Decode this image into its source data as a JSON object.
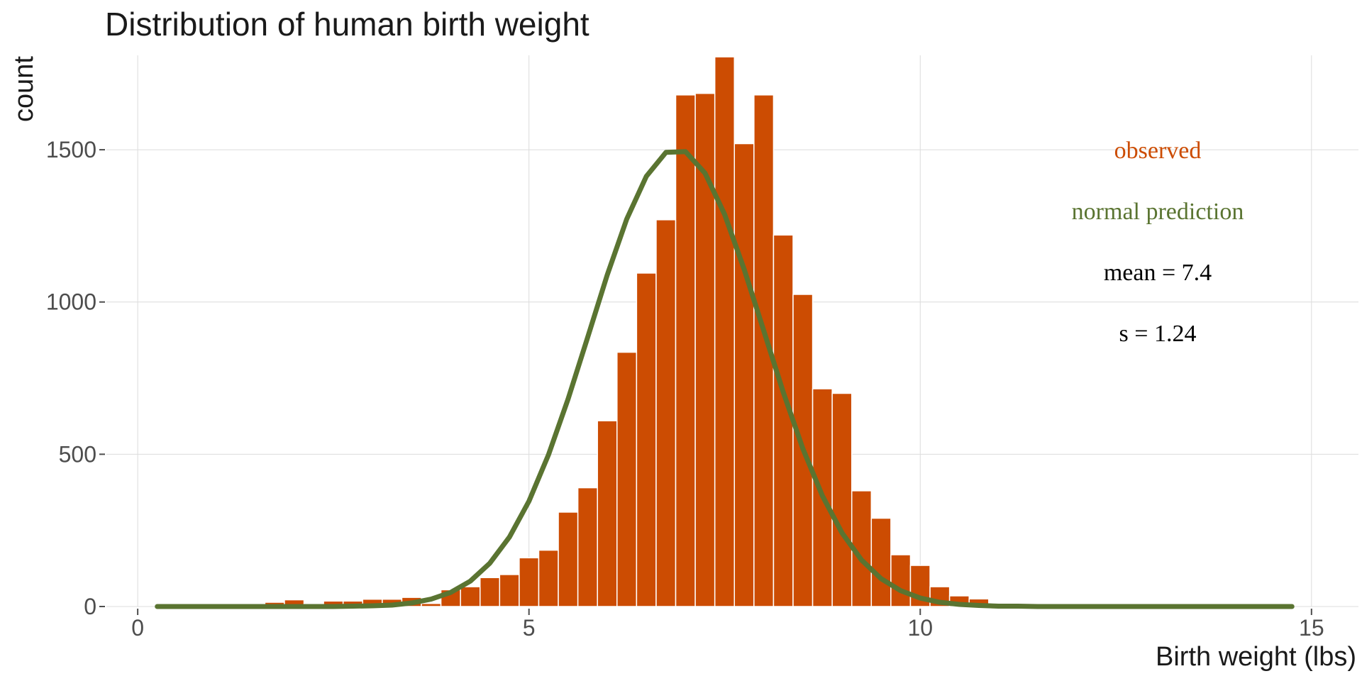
{
  "chart_data": {
    "type": "bar",
    "title": "Distribution of human birth weight",
    "xlabel": "Birth weight (lbs)",
    "ylabel": "count",
    "xlim": [
      -0.4,
      15.6
    ],
    "ylim": [
      0,
      1810
    ],
    "xticks": [
      0,
      5,
      10,
      15
    ],
    "yticks": [
      0,
      500,
      1000,
      1500
    ],
    "grid": true,
    "bin_width": 0.25,
    "colors": {
      "observed": "#cc4c02",
      "normal": "#5a7431",
      "text": "#000000"
    },
    "series": [
      {
        "name": "observed",
        "x": [
          1.75,
          2.0,
          2.25,
          2.5,
          2.75,
          3.0,
          3.25,
          3.5,
          3.75,
          4.0,
          4.25,
          4.5,
          4.75,
          5.0,
          5.25,
          5.5,
          5.75,
          6.0,
          6.25,
          6.5,
          6.75,
          7.0,
          7.25,
          7.5,
          7.75,
          8.0,
          8.25,
          8.5,
          8.75,
          9.0,
          9.25,
          9.5,
          9.75,
          10.0,
          10.25,
          10.5,
          10.75,
          11.0
        ],
        "values": [
          14,
          22,
          8,
          18,
          18,
          24,
          24,
          30,
          10,
          55,
          65,
          95,
          105,
          160,
          185,
          310,
          390,
          610,
          835,
          1095,
          1270,
          1680,
          1685,
          1805,
          1520,
          1680,
          1220,
          1025,
          715,
          700,
          380,
          290,
          170,
          135,
          65,
          35,
          25,
          5
        ]
      },
      {
        "name": "normal prediction",
        "x": [
          0.25,
          0.5,
          0.75,
          1.0,
          1.25,
          1.5,
          1.75,
          2.0,
          2.25,
          2.5,
          2.75,
          3.0,
          3.25,
          3.5,
          3.75,
          4.0,
          4.25,
          4.5,
          4.75,
          5.0,
          5.25,
          5.5,
          5.75,
          6.0,
          6.25,
          6.5,
          6.75,
          7.0,
          7.25,
          7.5,
          7.75,
          8.0,
          8.25,
          8.5,
          8.75,
          9.0,
          9.25,
          9.5,
          9.75,
          10.0,
          10.25,
          10.5,
          10.75,
          11.0,
          11.25,
          11.5,
          11.75,
          12.0,
          12.25,
          12.5,
          12.75,
          13.0,
          13.25,
          13.5,
          13.75,
          14.0,
          14.25,
          14.5,
          14.75
        ],
        "values": [
          0,
          0,
          0,
          0,
          0,
          0,
          0,
          0,
          0,
          0,
          1,
          2,
          4,
          10,
          21,
          40,
          72,
          123,
          197,
          299,
          431,
          589,
          764,
          941,
          1100,
          1221,
          1289,
          1291,
          1230,
          1113,
          957,
          783,
          608,
          448,
          314,
          209,
          132,
          79,
          45,
          24,
          12,
          6,
          3,
          1,
          1,
          0,
          0,
          0,
          0,
          0,
          0,
          0,
          0,
          0,
          0,
          0,
          0,
          0,
          0
        ]
      }
    ],
    "normal_scale": 1.157,
    "annotations": [
      {
        "label": "observed",
        "color": "#cc4c02"
      },
      {
        "label": "normal prediction",
        "color": "#5a7431"
      },
      {
        "label": "mean = 7.4",
        "color": "#000000"
      },
      {
        "label": "s = 1.24",
        "color": "#000000"
      }
    ]
  }
}
